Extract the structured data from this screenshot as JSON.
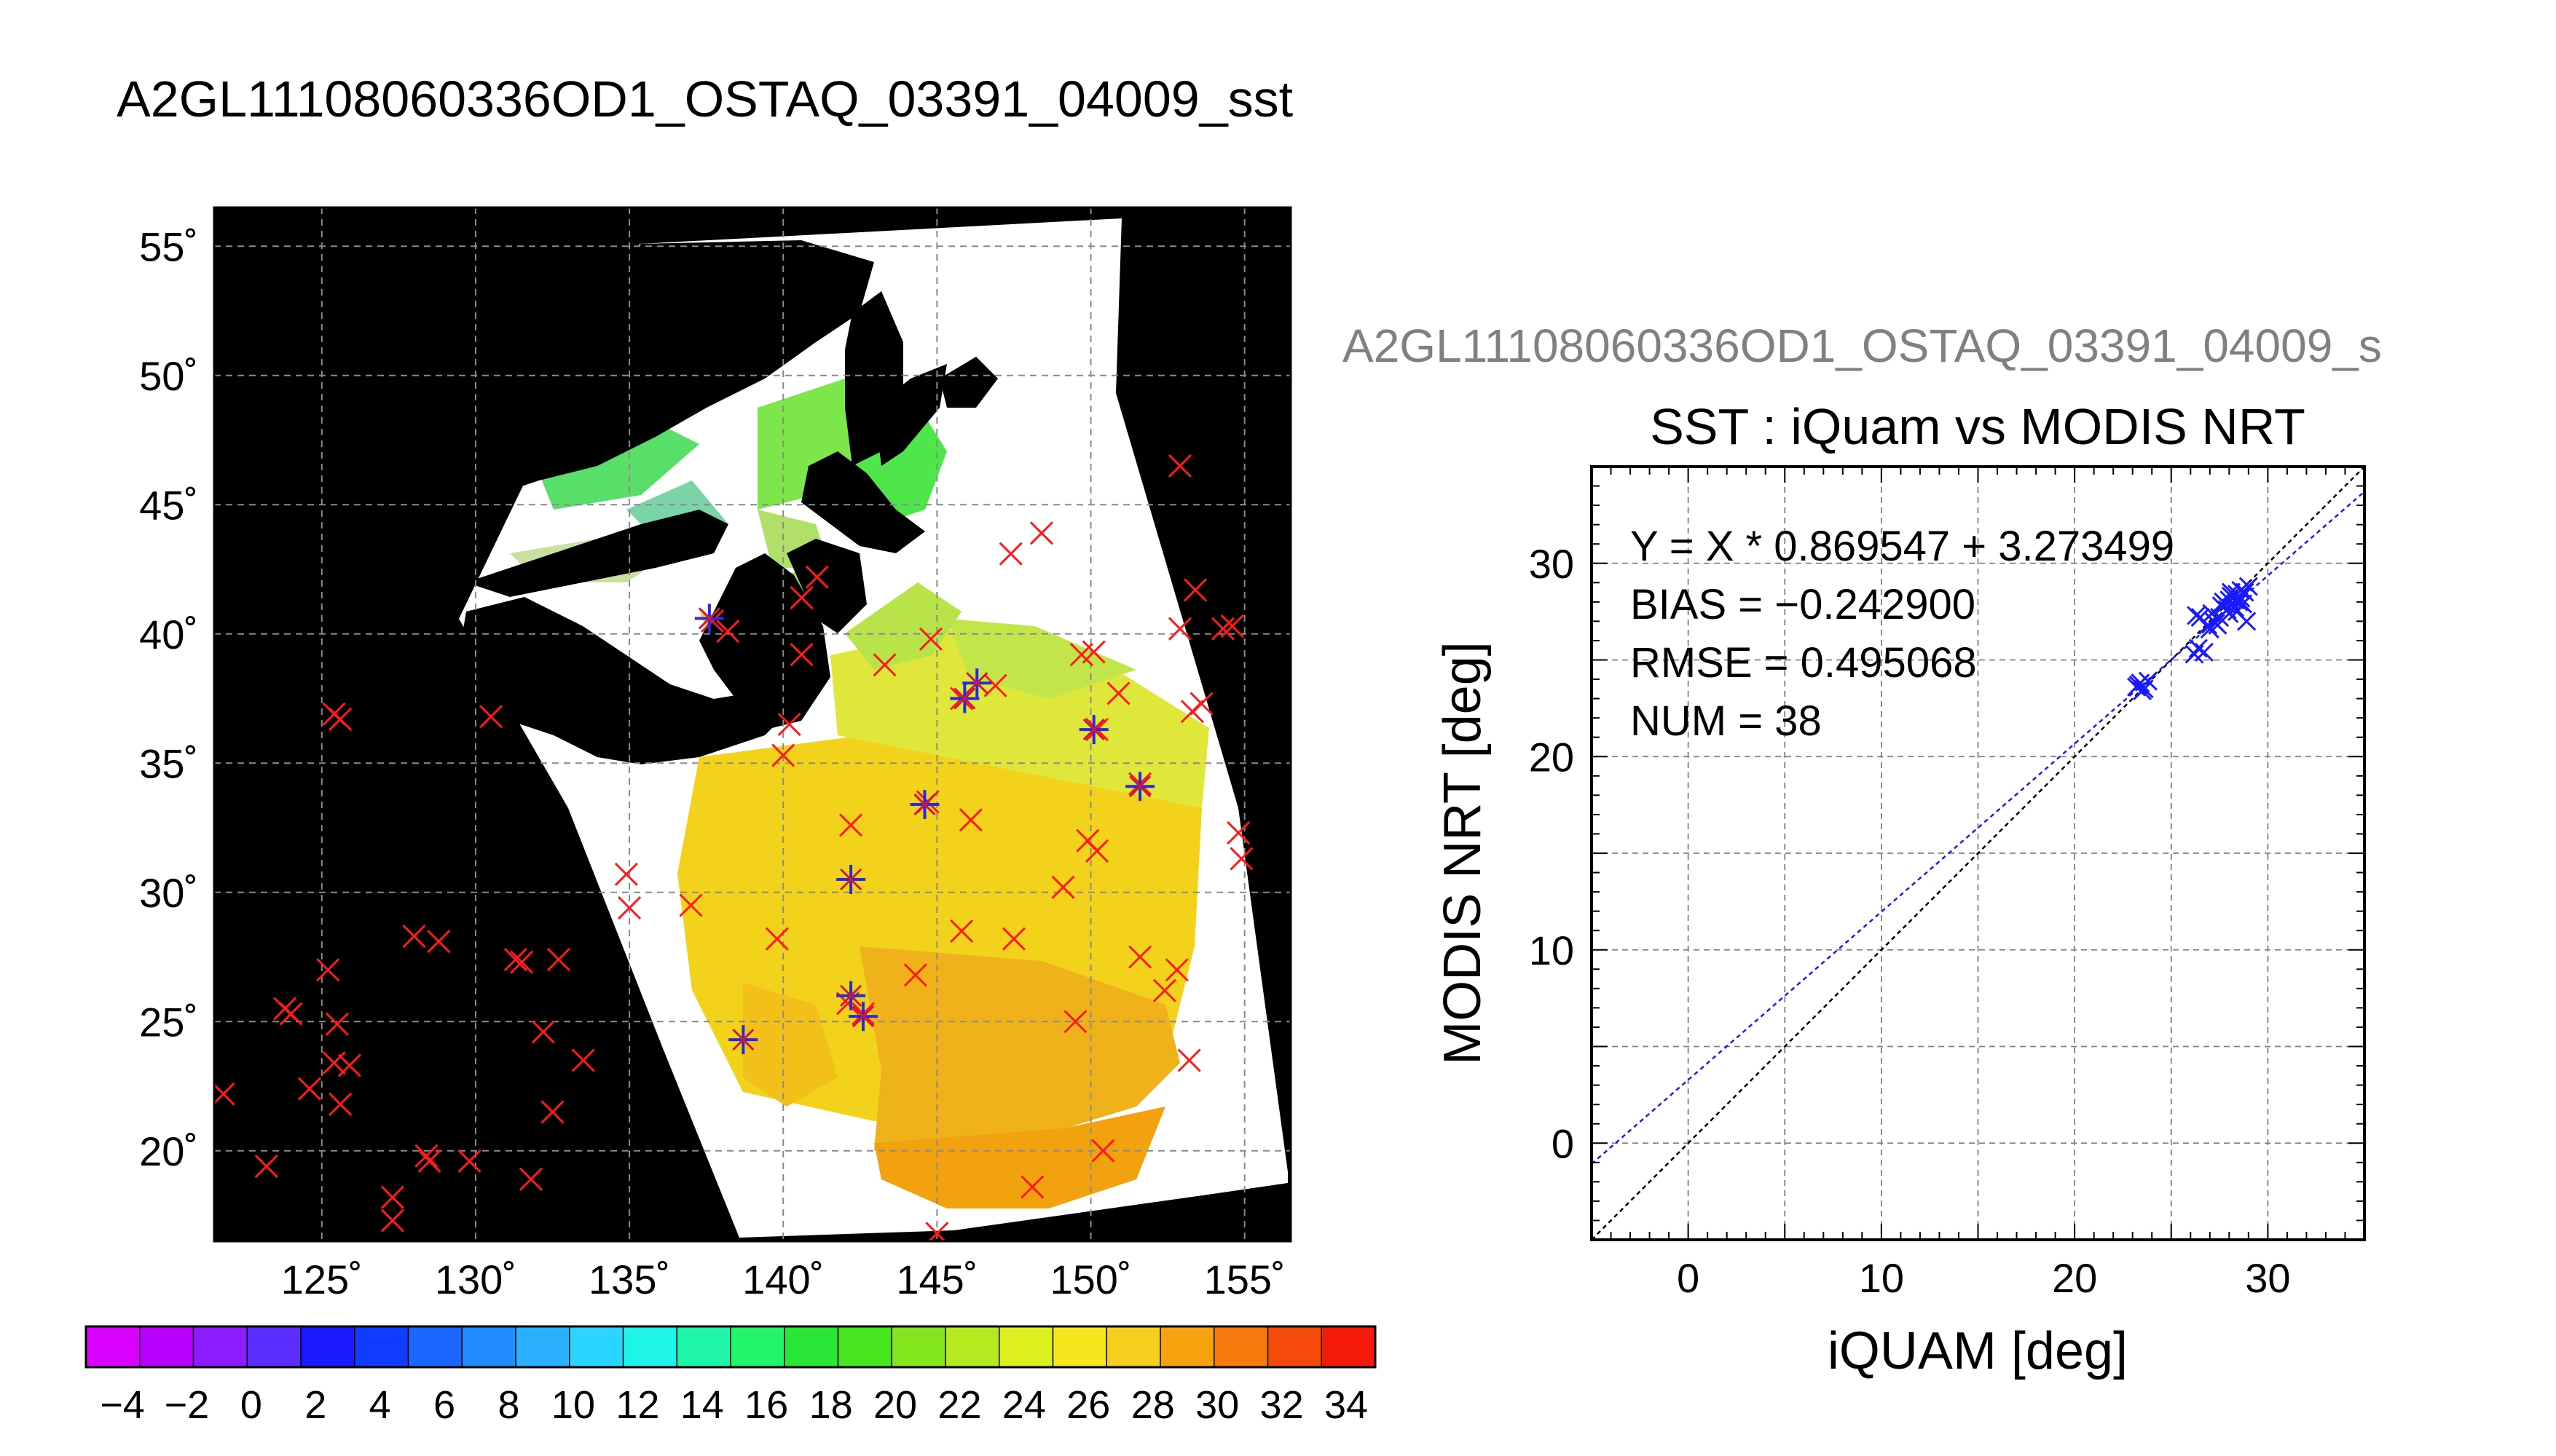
{
  "figure_title": "A2GL11108060336OD1_OSTAQ_03391_04009_sst",
  "map": {
    "lon_ticks": [
      125,
      130,
      135,
      140,
      145,
      150,
      155
    ],
    "lat_ticks": [
      55,
      50,
      45,
      40,
      35,
      30,
      25,
      20
    ],
    "lon_range": [
      121.5,
      156.5
    ],
    "lat_range": [
      16.5,
      56.5
    ],
    "degree_symbol": "˚"
  },
  "colorbar": {
    "ticks": [
      "−4",
      "−2",
      "0",
      "2",
      "4",
      "6",
      "8",
      "10",
      "12",
      "14",
      "16",
      "18",
      "20",
      "22",
      "24",
      "26",
      "28",
      "30",
      "32",
      "34"
    ],
    "colors": [
      "#d800ff",
      "#b800ff",
      "#8a1cff",
      "#5a2cff",
      "#1a1aff",
      "#0f3cff",
      "#1a66ff",
      "#1f8cff",
      "#29b0ff",
      "#2ad6ff",
      "#1ef5e8",
      "#1ff5a8",
      "#22f56a",
      "#2ae636",
      "#46e61e",
      "#84e61e",
      "#b4ea1e",
      "#dcf01e",
      "#f5e61e",
      "#f7cf1e",
      "#f7a30f",
      "#f77a0f",
      "#f54a0a",
      "#f51a0a"
    ]
  },
  "right_title": "A2GL11108060336OD1_OSTAQ_03391_04009_s",
  "scatter": {
    "title": "SST : iQuam vs MODIS NRT",
    "xlabel": "iQUAM [deg]",
    "ylabel": "MODIS NRT [deg]",
    "stats": [
      "Y = X * 0.869547 + 3.273499",
      "BIAS = −0.242900",
      "RMSE = 0.495068",
      "NUM = 38"
    ]
  },
  "chart_data": {
    "type": "scatter",
    "title": "SST : iQuam vs MODIS NRT",
    "xlabel": "iQUAM [deg]",
    "ylabel": "MODIS NRT [deg]",
    "xlim": [
      -5,
      35
    ],
    "ylim": [
      -5,
      35
    ],
    "xticks": [
      0,
      10,
      20,
      30
    ],
    "yticks": [
      0,
      10,
      20,
      30
    ],
    "grid": true,
    "fit": {
      "slope": 0.869547,
      "intercept": 3.273499
    },
    "one_to_one_line": true,
    "series": [
      {
        "x": [
          23.2,
          23.4,
          23.6,
          23.8,
          23.5,
          23.3,
          26.2,
          26.4,
          26.5,
          26.7,
          26.3,
          27.0,
          27.2,
          27.4,
          27.1,
          27.6,
          27.7,
          27.9,
          28.0,
          28.1,
          27.8,
          28.2,
          28.3,
          28.4,
          28.5,
          28.6,
          28.7,
          28.8,
          28.9,
          29.0,
          28.1,
          27.5,
          27.3,
          28.4,
          28.6,
          26.9,
          28.0,
          28.3
        ],
        "y": [
          23.6,
          23.8,
          23.5,
          23.9,
          23.4,
          23.7,
          25.3,
          25.6,
          27.2,
          25.4,
          27.3,
          26.6,
          27.0,
          26.8,
          27.4,
          27.8,
          28.0,
          27.6,
          28.1,
          28.3,
          27.9,
          28.2,
          27.7,
          28.4,
          28.0,
          28.6,
          27.9,
          28.5,
          27.0,
          28.8,
          28.5,
          27.2,
          26.9,
          27.5,
          28.2,
          26.8,
          27.4,
          28.1
        ],
        "color": "#1a1aff"
      }
    ]
  },
  "map_data": {
    "coast_mask_color": "#000000",
    "red_crosses": [
      [
        121.8,
        22.2
      ],
      [
        123.2,
        19.4
      ],
      [
        123.8,
        25.5
      ],
      [
        124.0,
        25.3
      ],
      [
        124.6,
        22.4
      ],
      [
        125.2,
        27.0
      ],
      [
        125.4,
        23.4
      ],
      [
        125.5,
        24.9
      ],
      [
        125.6,
        21.8
      ],
      [
        125.9,
        23.3
      ],
      [
        125.4,
        36.9
      ],
      [
        125.6,
        36.7
      ],
      [
        127.3,
        18.2
      ],
      [
        127.3,
        17.3
      ],
      [
        128.0,
        28.3
      ],
      [
        128.4,
        19.8
      ],
      [
        128.8,
        28.1
      ],
      [
        128.5,
        19.6
      ],
      [
        129.8,
        19.6
      ],
      [
        130.5,
        36.8
      ],
      [
        131.3,
        27.4
      ],
      [
        131.5,
        27.3
      ],
      [
        131.8,
        18.9
      ],
      [
        132.2,
        24.6
      ],
      [
        132.5,
        21.5
      ],
      [
        132.7,
        27.4
      ],
      [
        133.5,
        23.5
      ],
      [
        134.9,
        30.7
      ],
      [
        135.0,
        29.4
      ],
      [
        137.0,
        29.5
      ],
      [
        137.7,
        40.5
      ],
      [
        138.2,
        40.1
      ],
      [
        139.8,
        28.2
      ],
      [
        140.6,
        39.2
      ],
      [
        140.6,
        41.4
      ],
      [
        141.1,
        42.2
      ],
      [
        140.2,
        36.5
      ],
      [
        140.0,
        35.3
      ],
      [
        142.1,
        25.7
      ],
      [
        142.6,
        25.3
      ],
      [
        142.2,
        32.6
      ],
      [
        143.3,
        38.8
      ],
      [
        144.3,
        26.8
      ],
      [
        144.7,
        33.5
      ],
      [
        144.8,
        39.8
      ],
      [
        145.8,
        37.5
      ],
      [
        145.8,
        28.5
      ],
      [
        146.1,
        32.8
      ],
      [
        146.9,
        38.0
      ],
      [
        147.5,
        28.2
      ],
      [
        147.4,
        43.1
      ],
      [
        148.1,
        18.6
      ],
      [
        148.4,
        43.9
      ],
      [
        149.1,
        30.2
      ],
      [
        149.5,
        25.0
      ],
      [
        149.7,
        39.2
      ],
      [
        149.9,
        32.0
      ],
      [
        150.2,
        36.3
      ],
      [
        150.2,
        31.6
      ],
      [
        150.1,
        39.3
      ],
      [
        150.4,
        20.0
      ],
      [
        150.9,
        37.7
      ],
      [
        151.6,
        34.2
      ],
      [
        151.6,
        27.5
      ],
      [
        152.4,
        26.2
      ],
      [
        152.8,
        27.0
      ],
      [
        152.9,
        46.5
      ],
      [
        152.9,
        40.2
      ],
      [
        153.2,
        23.5
      ],
      [
        153.3,
        37.0
      ],
      [
        153.4,
        41.7
      ],
      [
        153.6,
        37.3
      ],
      [
        154.3,
        40.2
      ],
      [
        154.6,
        40.3
      ],
      [
        154.8,
        32.3
      ],
      [
        154.9,
        31.3
      ],
      [
        145.0,
        16.8
      ]
    ],
    "blue_stars": [
      [
        138.7,
        24.3
      ],
      [
        142.2,
        30.5
      ],
      [
        142.2,
        26.0
      ],
      [
        142.6,
        25.2
      ],
      [
        144.6,
        33.4
      ],
      [
        145.9,
        37.5
      ],
      [
        146.3,
        38.1
      ],
      [
        150.1,
        36.3
      ],
      [
        151.6,
        34.1
      ],
      [
        137.6,
        40.6
      ]
    ]
  }
}
